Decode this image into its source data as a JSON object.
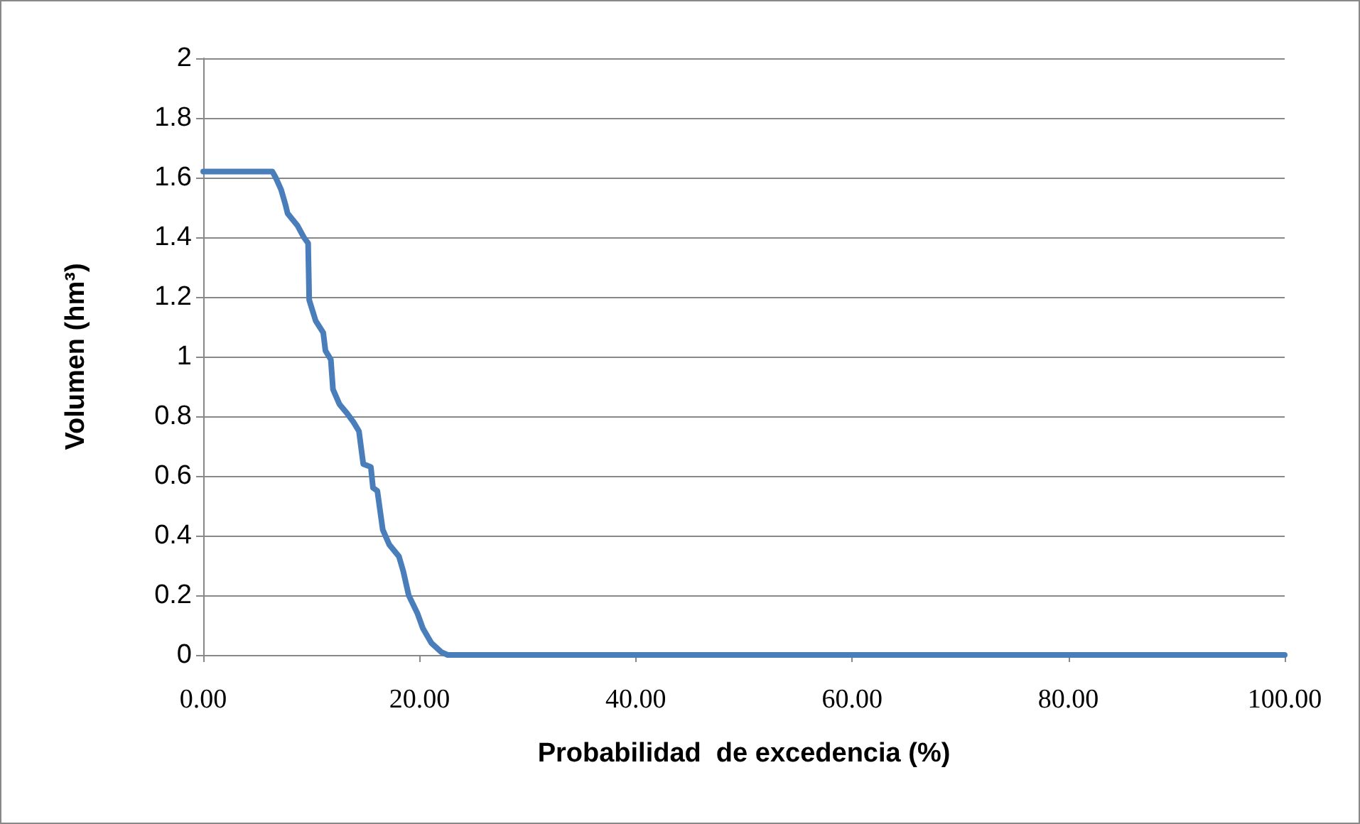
{
  "chart_data": {
    "type": "line",
    "xlabel": "Probabilidad  de excedencia (%)",
    "ylabel": "Volumen (hm³)",
    "x": [
      0,
      6.4,
      6.7,
      7.2,
      7.6,
      7.8,
      8.7,
      9.3,
      9.7,
      9.8,
      10.4,
      11.1,
      11.3,
      11.8,
      12.0,
      12.6,
      13.3,
      13.9,
      14.4,
      14.8,
      15.5,
      15.7,
      16.1,
      16.6,
      17.2,
      18.1,
      18.5,
      19.0,
      19.8,
      20.3,
      21.1,
      22.0,
      22.6,
      100
    ],
    "series": [
      {
        "color": "#4a7ebb",
        "values": [
          1.62,
          1.62,
          1.6,
          1.56,
          1.51,
          1.48,
          1.44,
          1.4,
          1.38,
          1.19,
          1.12,
          1.08,
          1.02,
          0.99,
          0.89,
          0.84,
          0.81,
          0.78,
          0.75,
          0.64,
          0.63,
          0.56,
          0.55,
          0.42,
          0.37,
          0.33,
          0.28,
          0.2,
          0.14,
          0.09,
          0.04,
          0.01,
          0,
          0
        ]
      }
    ],
    "xlim": [
      0,
      100
    ],
    "xticks": [
      {
        "value": 0,
        "label": "0.00"
      },
      {
        "value": 20,
        "label": "20.00"
      },
      {
        "value": 40,
        "label": "40.00"
      },
      {
        "value": 60,
        "label": "60.00"
      },
      {
        "value": 80,
        "label": "80.00"
      },
      {
        "value": 100,
        "label": "100.00"
      }
    ],
    "ylim": [
      0,
      2
    ],
    "yticks": [
      0,
      0.2,
      0.4,
      0.6,
      0.8,
      1,
      1.2,
      1.4,
      1.6,
      1.8,
      2
    ],
    "grid": "y",
    "marker": "none",
    "line_style": "solid"
  }
}
